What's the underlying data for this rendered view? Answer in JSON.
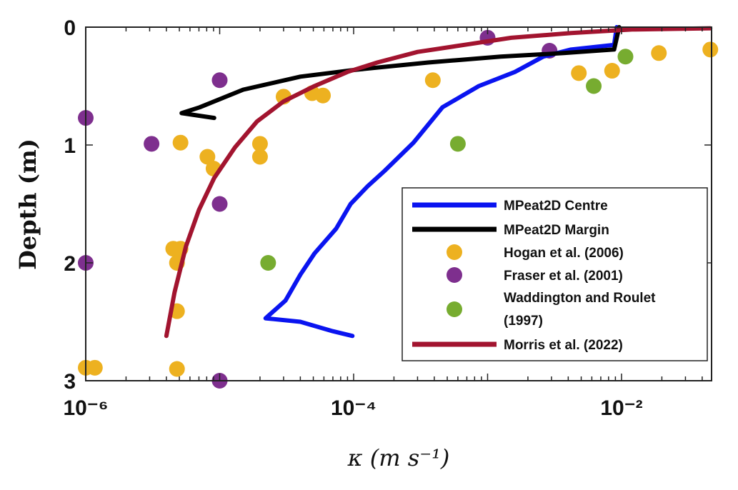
{
  "chart_data": {
    "type": "scatter",
    "title": "",
    "xlabel": "κ (m s⁻¹)",
    "ylabel": "Depth (m)",
    "xscale": "log",
    "xlim": [
      1e-06,
      0.047
    ],
    "ylim": [
      0,
      3
    ],
    "y_reversed": true,
    "x_ticks": [
      {
        "value": 1e-06,
        "label": "10⁻⁶"
      },
      {
        "value": 0.0001,
        "label": "10⁻⁴"
      },
      {
        "value": 0.01,
        "label": "10⁻²"
      }
    ],
    "y_ticks": [
      {
        "value": 0,
        "label": "0"
      },
      {
        "value": 1,
        "label": "1"
      },
      {
        "value": 2,
        "label": "2"
      },
      {
        "value": 3,
        "label": "3"
      }
    ],
    "grid": false,
    "legend_position": "bottom-right",
    "series": [
      {
        "name": "MPeat2D Centre",
        "kind": "line",
        "color": "#0a14f0",
        "points": [
          [
            9.8e-05,
            2.62
          ],
          [
            7e-05,
            2.58
          ],
          [
            4e-05,
            2.5
          ],
          [
            2.2e-05,
            2.47
          ],
          [
            3.1e-05,
            2.32
          ],
          [
            4e-05,
            2.1
          ],
          [
            5.1e-05,
            1.92
          ],
          [
            7.4e-05,
            1.71
          ],
          [
            9.5e-05,
            1.5
          ],
          [
            0.000127,
            1.35
          ],
          [
            0.00017,
            1.22
          ],
          [
            0.00028,
            0.98
          ],
          [
            0.00046,
            0.68
          ],
          [
            0.00086,
            0.5
          ],
          [
            0.0016,
            0.38
          ],
          [
            0.0026,
            0.25
          ],
          [
            0.0042,
            0.19
          ],
          [
            0.0088,
            0.15
          ],
          [
            0.0092,
            0.0
          ]
        ]
      },
      {
        "name": "MPeat2D Margin",
        "kind": "line",
        "color": "#000000",
        "points": [
          [
            9.1e-06,
            0.77
          ],
          [
            5.2e-06,
            0.73
          ],
          [
            7.1e-06,
            0.68
          ],
          [
            1.5e-05,
            0.53
          ],
          [
            4e-05,
            0.42
          ],
          [
            0.000107,
            0.36
          ],
          [
            0.00036,
            0.3
          ],
          [
            0.00125,
            0.25
          ],
          [
            0.0037,
            0.22
          ],
          [
            0.0088,
            0.19
          ],
          [
            0.0096,
            0.0
          ]
        ]
      },
      {
        "name": "Hogan et al. (2006)",
        "kind": "scatter",
        "color": "#edb120",
        "points": [
          [
            1e-06,
            2.89
          ],
          [
            1.17e-06,
            2.89
          ],
          [
            4.8e-06,
            2.9
          ],
          [
            4.8e-06,
            2.41
          ],
          [
            4.5e-06,
            1.88
          ],
          [
            5.1e-06,
            1.88
          ],
          [
            4.8e-06,
            2.0
          ],
          [
            5.1e-06,
            0.98
          ],
          [
            8.1e-06,
            1.1
          ],
          [
            9e-06,
            1.2
          ],
          [
            2e-05,
            0.99
          ],
          [
            2e-05,
            1.1
          ],
          [
            3e-05,
            0.59
          ],
          [
            4.9e-05,
            0.56
          ],
          [
            5.9e-05,
            0.58
          ],
          [
            0.00039,
            0.45
          ],
          [
            0.0048,
            0.39
          ],
          [
            0.0085,
            0.37
          ],
          [
            0.019,
            0.22
          ],
          [
            0.046,
            0.19
          ]
        ]
      },
      {
        "name": "Fraser et al. (2001)",
        "kind": "scatter",
        "color": "#7e2f8e",
        "points": [
          [
            1e-06,
            0.77
          ],
          [
            3.1e-06,
            0.99
          ],
          [
            1e-05,
            0.45
          ],
          [
            1e-05,
            1.5
          ],
          [
            1e-06,
            2.0
          ],
          [
            1e-05,
            3.0
          ],
          [
            0.001,
            0.09
          ],
          [
            0.0029,
            0.2
          ]
        ]
      },
      {
        "name": "Waddington and Roulet (1997)",
        "name_line1": "Waddington and Roulet",
        "name_line2": "(1997)",
        "kind": "scatter",
        "color": "#77ac30",
        "points": [
          [
            2.3e-05,
            2.0
          ],
          [
            0.0006,
            0.99
          ],
          [
            0.0062,
            0.5
          ],
          [
            0.0107,
            0.25
          ]
        ]
      },
      {
        "name": "Morris et al. (2022)",
        "kind": "line",
        "color": "#a2142f",
        "points": [
          [
            4e-06,
            2.62
          ],
          [
            4.6e-06,
            2.25
          ],
          [
            5.6e-06,
            1.86
          ],
          [
            7e-06,
            1.55
          ],
          [
            9.1e-06,
            1.28
          ],
          [
            1.3e-05,
            1.02
          ],
          [
            1.9e-05,
            0.8
          ],
          [
            3e-05,
            0.63
          ],
          [
            5.1e-05,
            0.5
          ],
          [
            9e-05,
            0.38
          ],
          [
            0.00015,
            0.3
          ],
          [
            0.0003,
            0.21
          ],
          [
            0.00067,
            0.15
          ],
          [
            0.0015,
            0.09
          ],
          [
            0.0042,
            0.05
          ],
          [
            0.012,
            0.02
          ],
          [
            0.046,
            0.01
          ]
        ]
      }
    ]
  }
}
